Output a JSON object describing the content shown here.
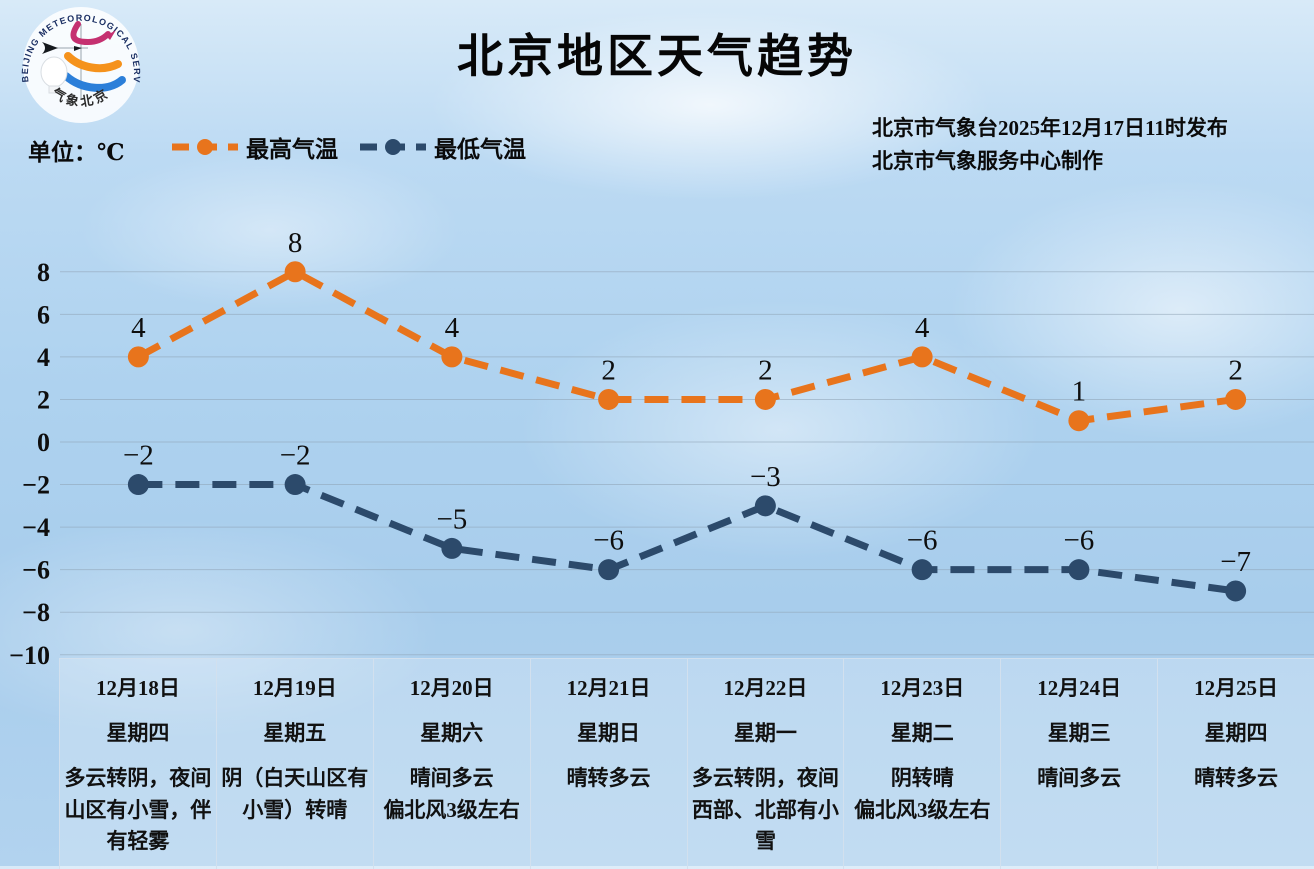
{
  "logo": {
    "arc_text": "BEIJING METEOROLOGICAL SERVICE",
    "bottom_text": "气象北京"
  },
  "header": {
    "title": "北京地区天气趋势",
    "unit_label": "单位：℃",
    "issued_line1": "北京市气象台2025年12月17日11时发布",
    "issued_line2": "北京市气象服务中心制作"
  },
  "legend": {
    "items": [
      {
        "label": "最高气温",
        "color": "#E8741C"
      },
      {
        "label": "最低气温",
        "color": "#2C4A6B"
      }
    ]
  },
  "chart_data": {
    "type": "line",
    "title": "北京地区天气趋势",
    "ylabel": "℃",
    "categories": [
      "12月18日",
      "12月19日",
      "12月20日",
      "12月21日",
      "12月22日",
      "12月23日",
      "12月24日",
      "12月25日"
    ],
    "series": [
      {
        "name": "最高气温",
        "color": "#E8741C",
        "values": [
          4,
          8,
          4,
          2,
          2,
          4,
          1,
          2
        ]
      },
      {
        "name": "最低气温",
        "color": "#2C4A6B",
        "values": [
          -2,
          -2,
          -5,
          -6,
          -3,
          -6,
          -6,
          -7
        ]
      }
    ],
    "ylim": [
      -10,
      8
    ],
    "yticks": [
      8,
      6,
      4,
      2,
      0,
      -2,
      -4,
      -6,
      -8,
      -10
    ],
    "grid": "horizontal",
    "line_style": "dashed",
    "legend_position": "top-left",
    "gridline_color": "#8fa3b5",
    "label_color": "#0e0e0e"
  },
  "table": {
    "columns": [
      {
        "date": "12月18日",
        "weekday": "星期四",
        "weather": "多云转阴，夜间山区有小雪，伴有轻雾"
      },
      {
        "date": "12月19日",
        "weekday": "星期五",
        "weather": "阴（白天山区有小雪）转晴"
      },
      {
        "date": "12月20日",
        "weekday": "星期六",
        "weather": "晴间多云\n偏北风3级左右"
      },
      {
        "date": "12月21日",
        "weekday": "星期日",
        "weather": "晴转多云"
      },
      {
        "date": "12月22日",
        "weekday": "星期一",
        "weather": "多云转阴，夜间西部、北部有小雪"
      },
      {
        "date": "12月23日",
        "weekday": "星期二",
        "weather": "阴转晴\n偏北风3级左右"
      },
      {
        "date": "12月24日",
        "weekday": "星期三",
        "weather": "晴间多云"
      },
      {
        "date": "12月25日",
        "weekday": "星期四",
        "weather": "晴转多云"
      }
    ]
  }
}
